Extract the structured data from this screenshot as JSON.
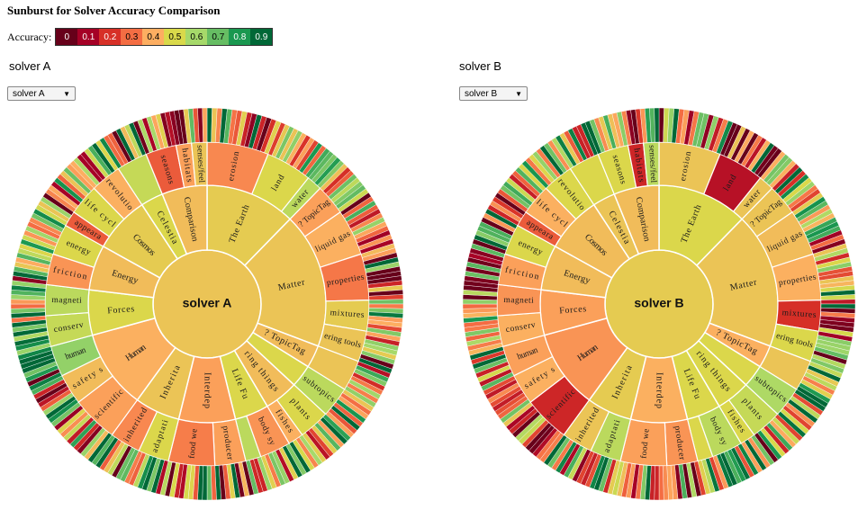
{
  "title": "Sunburst for Solver Accuracy Comparison",
  "legend": {
    "label": "Accuracy:",
    "bins": [
      {
        "label": "0",
        "color": "#67001a"
      },
      {
        "label": "0.1",
        "color": "#a50026"
      },
      {
        "label": "0.2",
        "color": "#d73027"
      },
      {
        "label": "0.3",
        "color": "#f46d43"
      },
      {
        "label": "0.4",
        "color": "#fdae61"
      },
      {
        "label": "0.5",
        "color": "#d9d94a"
      },
      {
        "label": "0.6",
        "color": "#a6d96a"
      },
      {
        "label": "0.7",
        "color": "#66bd63"
      },
      {
        "label": "0.8",
        "color": "#1a9850"
      },
      {
        "label": "0.9",
        "color": "#006837"
      }
    ]
  },
  "panels": [
    {
      "heading": "solver A",
      "select_value": "solver A"
    },
    {
      "heading": "solver B",
      "select_value": "solver B"
    }
  ],
  "chart_data": [
    {
      "type": "sunburst",
      "center_label": "solver A",
      "center_accuracy": 0.5,
      "nodes": [
        {
          "label": "The Earth",
          "weight": 8,
          "accuracy": 0.52,
          "children": [
            {
              "label": "erosion",
              "weight": 4,
              "accuracy": 0.38
            },
            {
              "label": "land",
              "weight": 3,
              "accuracy": 0.55
            },
            {
              "label": "water",
              "weight": 1,
              "accuracy": 0.62
            }
          ]
        },
        {
          "label": "Matter",
          "weight": 12,
          "accuracy": 0.5,
          "children": [
            {
              "label": "? TopicTag",
              "weight": 2,
              "accuracy": 0.42
            },
            {
              "label": "liquid gas",
              "weight": 3,
              "accuracy": 0.45
            },
            {
              "label": "properties",
              "weight": 3,
              "accuracy": 0.35
            },
            {
              "label": "mixtures",
              "weight": 2,
              "accuracy": 0.52
            },
            {
              "label": "ering tools",
              "weight": 2,
              "accuracy": 0.5
            }
          ]
        },
        {
          "label": "? TopicTag",
          "weight": 2,
          "accuracy": 0.48,
          "children": [
            {
              "label": "",
              "weight": 2,
              "accuracy": 0.5
            }
          ]
        },
        {
          "label": "",
          "weight": 2,
          "accuracy": 0.55,
          "children": [
            {
              "label": "subtopics",
              "weight": 2,
              "accuracy": 0.62
            }
          ]
        },
        {
          "label": "ring things",
          "weight": 3,
          "accuracy": 0.48,
          "children": [
            {
              "label": "plants",
              "weight": 2,
              "accuracy": 0.55
            },
            {
              "label": "fishes",
              "weight": 1,
              "accuracy": 0.45
            }
          ]
        },
        {
          "label": "Life Fu",
          "weight": 3,
          "accuracy": 0.55,
          "children": [
            {
              "label": "body sy",
              "weight": 2,
              "accuracy": 0.4
            },
            {
              "label": "",
              "weight": 1,
              "accuracy": 0.62
            }
          ]
        },
        {
          "label": "Interdep",
          "weight": 5,
          "accuracy": 0.42,
          "children": [
            {
              "label": "producer",
              "weight": 2,
              "accuracy": 0.42
            },
            {
              "label": "food we",
              "weight": 3,
              "accuracy": 0.36
            }
          ]
        },
        {
          "label": "Inherita",
          "weight": 4,
          "accuracy": 0.5,
          "children": [
            {
              "label": "adaptati",
              "weight": 2,
              "accuracy": 0.55
            },
            {
              "label": "inherited",
              "weight": 2,
              "accuracy": 0.38
            }
          ]
        },
        {
          "label": "Human",
          "weight": 7,
          "accuracy": 0.45,
          "children": [
            {
              "label": "scientific",
              "weight": 3,
              "accuracy": 0.42
            },
            {
              "label": "safety s",
              "weight": 2,
              "accuracy": 0.48
            },
            {
              "label": "human",
              "weight": 2,
              "accuracy": 0.7
            }
          ]
        },
        {
          "label": "Forces",
          "weight": 4,
          "accuracy": 0.55,
          "children": [
            {
              "label": "conserv",
              "weight": 2,
              "accuracy": 0.6
            },
            {
              "label": "magneti",
              "weight": 2,
              "accuracy": 0.62
            }
          ]
        },
        {
          "label": "Energy",
          "weight": 4,
          "accuracy": 0.48,
          "children": [
            {
              "label": "friction",
              "weight": 2,
              "accuracy": 0.4
            },
            {
              "label": "energy",
              "weight": 2,
              "accuracy": 0.55
            }
          ]
        },
        {
          "label": "Cosmos",
          "weight": 5,
          "accuracy": 0.52,
          "children": [
            {
              "label": "appeara",
              "weight": 1,
              "accuracy": 0.3
            },
            {
              "label": "life cycl",
              "weight": 2,
              "accuracy": 0.55
            },
            {
              "label": "revolutio",
              "weight": 2,
              "accuracy": 0.45
            }
          ]
        },
        {
          "label": "Celestia",
          "weight": 2,
          "accuracy": 0.55,
          "children": [
            {
              "label": "",
              "weight": 2,
              "accuracy": 0.6
            }
          ]
        },
        {
          "label": "Comparison",
          "weight": 4,
          "accuracy": 0.48,
          "children": [
            {
              "label": "seasons",
              "weight": 2,
              "accuracy": 0.3
            },
            {
              "label": "habitats",
              "weight": 1,
              "accuracy": 0.42
            },
            {
              "label": "senses/feel",
              "weight": 1,
              "accuracy": 0.5
            }
          ]
        }
      ]
    },
    {
      "type": "sunburst",
      "center_label": "solver B",
      "center_accuracy": 0.52,
      "nodes": [
        {
          "label": "The Earth",
          "weight": 8,
          "accuracy": 0.55,
          "children": [
            {
              "label": "erosion",
              "weight": 4,
              "accuracy": 0.5
            },
            {
              "label": "land",
              "weight": 3,
              "accuracy": 0.15
            },
            {
              "label": "water",
              "weight": 1,
              "accuracy": 0.5
            }
          ]
        },
        {
          "label": "Matter",
          "weight": 12,
          "accuracy": 0.5,
          "children": [
            {
              "label": "? TopicTag",
              "weight": 2,
              "accuracy": 0.5
            },
            {
              "label": "liquid gas",
              "weight": 3,
              "accuracy": 0.48
            },
            {
              "label": "properties",
              "weight": 3,
              "accuracy": 0.45
            },
            {
              "label": "mixtures",
              "weight": 2,
              "accuracy": 0.22
            },
            {
              "label": "ering tools",
              "weight": 2,
              "accuracy": 0.55
            }
          ]
        },
        {
          "label": "? TopicTag",
          "weight": 2,
          "accuracy": 0.45,
          "children": [
            {
              "label": "",
              "weight": 2,
              "accuracy": 0.5
            }
          ]
        },
        {
          "label": "",
          "weight": 2,
          "accuracy": 0.55,
          "children": [
            {
              "label": "subtopics",
              "weight": 2,
              "accuracy": 0.65
            }
          ]
        },
        {
          "label": "ring things",
          "weight": 3,
          "accuracy": 0.55,
          "children": [
            {
              "label": "plants",
              "weight": 2,
              "accuracy": 0.6
            },
            {
              "label": "fishes",
              "weight": 1,
              "accuracy": 0.55
            }
          ]
        },
        {
          "label": "Life Fu",
          "weight": 3,
          "accuracy": 0.55,
          "children": [
            {
              "label": "body sy",
              "weight": 2,
              "accuracy": 0.62
            },
            {
              "label": "",
              "weight": 1,
              "accuracy": 0.55
            }
          ]
        },
        {
          "label": "Interdep",
          "weight": 5,
          "accuracy": 0.45,
          "children": [
            {
              "label": "producer",
              "weight": 2,
              "accuracy": 0.4
            },
            {
              "label": "food we",
              "weight": 3,
              "accuracy": 0.42
            }
          ]
        },
        {
          "label": "Inherita",
          "weight": 4,
          "accuracy": 0.52,
          "children": [
            {
              "label": "adaptati",
              "weight": 2,
              "accuracy": 0.62
            },
            {
              "label": "inherited",
              "weight": 2,
              "accuracy": 0.5
            }
          ]
        },
        {
          "label": "Human",
          "weight": 7,
          "accuracy": 0.4,
          "children": [
            {
              "label": "scientific",
              "weight": 3,
              "accuracy": 0.2
            },
            {
              "label": "safety s",
              "weight": 2,
              "accuracy": 0.45
            },
            {
              "label": "human",
              "weight": 2,
              "accuracy": 0.42
            }
          ]
        },
        {
          "label": "Forces",
          "weight": 4,
          "accuracy": 0.42,
          "children": [
            {
              "label": "conserv",
              "weight": 2,
              "accuracy": 0.45
            },
            {
              "label": "magneti",
              "weight": 2,
              "accuracy": 0.4
            }
          ]
        },
        {
          "label": "Energy",
          "weight": 4,
          "accuracy": 0.48,
          "children": [
            {
              "label": "friction",
              "weight": 2,
              "accuracy": 0.42
            },
            {
              "label": "energy",
              "weight": 2,
              "accuracy": 0.55
            }
          ]
        },
        {
          "label": "Cosmos",
          "weight": 5,
          "accuracy": 0.48,
          "children": [
            {
              "label": "appeara",
              "weight": 1,
              "accuracy": 0.3
            },
            {
              "label": "life cycl",
              "weight": 2,
              "accuracy": 0.45
            },
            {
              "label": "revolutio",
              "weight": 2,
              "accuracy": 0.55
            }
          ]
        },
        {
          "label": "Celestia",
          "weight": 2,
          "accuracy": 0.5,
          "children": [
            {
              "label": "",
              "weight": 2,
              "accuracy": 0.55
            }
          ]
        },
        {
          "label": "Comparison",
          "weight": 4,
          "accuracy": 0.48,
          "children": [
            {
              "label": "seasons",
              "weight": 2,
              "accuracy": 0.55
            },
            {
              "label": "habitats",
              "weight": 1,
              "accuracy": 0.2
            },
            {
              "label": "senses/feel",
              "weight": 1,
              "accuracy": 0.62
            }
          ]
        }
      ]
    }
  ]
}
